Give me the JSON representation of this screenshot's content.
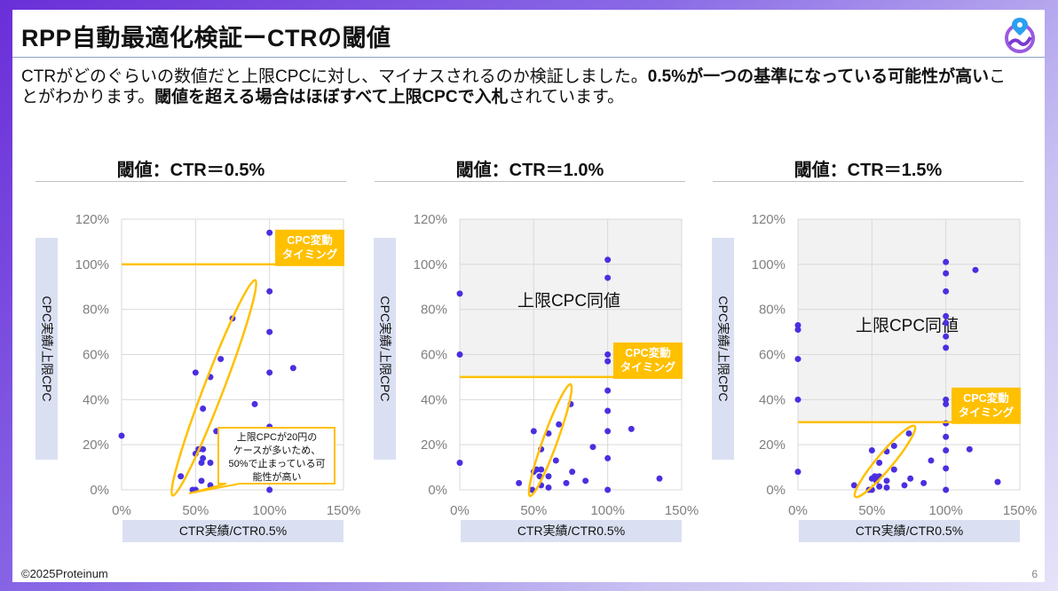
{
  "header": {
    "title": "RPP自動最適化検証ーCTRの閾値"
  },
  "description": [
    {
      "text": "CTRがどのぐらいの数値だと上限CPCに対し、マイナスされるのか検証しました。",
      "bold": false
    },
    {
      "text": "0.5%が一つの基準になっている可能性が高い",
      "bold": true
    },
    {
      "text": "こ",
      "bold": false
    },
    {
      "text": "とがわかります。",
      "bold": false,
      "newline": true
    },
    {
      "text": "閾値を超える場合はほぼすべて上限CPCで入札",
      "bold": true
    },
    {
      "text": "されています。",
      "bold": false
    }
  ],
  "footer": {
    "copyright": "©2025Proteinum",
    "page": "6"
  },
  "colors": {
    "point": "#4a2fe0",
    "accent": "#ffc000",
    "axis_label_bg": "#dae0f2",
    "shade": "#f2f2f2",
    "grid": "#d9d9d9"
  },
  "logo": {
    "icon": "location-pin-globe-icon"
  },
  "chart_data": [
    {
      "type": "scatter",
      "panel_title": "閾値：CTR＝0.5%",
      "xlabel": "CTR実績/CTR0.5%",
      "ylabel": "CPC実績/上限CPC",
      "xlim": [
        0,
        150
      ],
      "ylim": [
        0,
        120
      ],
      "xticks": [
        "0%",
        "50%",
        "100%",
        "150%"
      ],
      "yticks": [
        "0%",
        "20%",
        "40%",
        "60%",
        "80%",
        "100%",
        "120%"
      ],
      "grid": true,
      "threshold": 100,
      "threshold_label": "CPC変動\nタイミング",
      "shaded_above_threshold": false,
      "region_label": "",
      "callout": "上限CPCが20円の\nケースが多いため、\n50%で止まっている可\n能性が高い",
      "points": [
        [
          100,
          114
        ],
        [
          100,
          88
        ],
        [
          75,
          76
        ],
        [
          100,
          70
        ],
        [
          67,
          58
        ],
        [
          116,
          54
        ],
        [
          50,
          52
        ],
        [
          100,
          52
        ],
        [
          60,
          50
        ],
        [
          90,
          38
        ],
        [
          55,
          36
        ],
        [
          100,
          28
        ],
        [
          0,
          24
        ],
        [
          64,
          26
        ],
        [
          52,
          18
        ],
        [
          55,
          18
        ],
        [
          50,
          16
        ],
        [
          55,
          14
        ],
        [
          54,
          12
        ],
        [
          60,
          12
        ],
        [
          40,
          6
        ],
        [
          54,
          4
        ],
        [
          60,
          2
        ],
        [
          48,
          0
        ],
        [
          50,
          0
        ],
        [
          100,
          0
        ]
      ]
    },
    {
      "type": "scatter",
      "panel_title": "閾値：CTR＝1.0%",
      "xlabel": "CTR実績/CTR0.5%",
      "ylabel": "CPC実績/上限CPC",
      "xlim": [
        0,
        150
      ],
      "ylim": [
        0,
        120
      ],
      "xticks": [
        "0%",
        "50%",
        "100%",
        "150%"
      ],
      "yticks": [
        "0%",
        "20%",
        "40%",
        "60%",
        "80%",
        "100%",
        "120%"
      ],
      "grid": true,
      "threshold": 50,
      "threshold_label": "CPC変動\nタイミング",
      "shaded_above_threshold": true,
      "region_label": "上限CPC同値",
      "points": [
        [
          100,
          102
        ],
        [
          100,
          94
        ],
        [
          0,
          87
        ],
        [
          0,
          60
        ],
        [
          100,
          60
        ],
        [
          100,
          57
        ],
        [
          100,
          44
        ],
        [
          75,
          38
        ],
        [
          100,
          35
        ],
        [
          67,
          29
        ],
        [
          50,
          26
        ],
        [
          60,
          25
        ],
        [
          100,
          26
        ],
        [
          116,
          27
        ],
        [
          55,
          18
        ],
        [
          90,
          19
        ],
        [
          0,
          12
        ],
        [
          100,
          14
        ],
        [
          65,
          13
        ],
        [
          52,
          9
        ],
        [
          55,
          9
        ],
        [
          50,
          8
        ],
        [
          76,
          8
        ],
        [
          54,
          6
        ],
        [
          60,
          6
        ],
        [
          135,
          5
        ],
        [
          40,
          3
        ],
        [
          72,
          3
        ],
        [
          85,
          4
        ],
        [
          55,
          2
        ],
        [
          60,
          1
        ],
        [
          49,
          0
        ],
        [
          100,
          0
        ]
      ]
    },
    {
      "type": "scatter",
      "panel_title": "閾値：CTR＝1.5%",
      "xlabel": "CTR実績/CTR0.5%",
      "ylabel": "CPC実績/上限CPC",
      "xlim": [
        0,
        150
      ],
      "ylim": [
        0,
        120
      ],
      "xticks": [
        "0%",
        "50%",
        "100%",
        "150%"
      ],
      "yticks": [
        "0%",
        "20%",
        "40%",
        "60%",
        "80%",
        "100%",
        "120%"
      ],
      "grid": true,
      "threshold": 30,
      "threshold_label": "CPC変動\nタイミング",
      "shaded_above_threshold": true,
      "region_label": "上限CPC同値",
      "points": [
        [
          100,
          101
        ],
        [
          100,
          96
        ],
        [
          120,
          97.5
        ],
        [
          100,
          88
        ],
        [
          100,
          77
        ],
        [
          100,
          74
        ],
        [
          0,
          73
        ],
        [
          0,
          71
        ],
        [
          100,
          68
        ],
        [
          100,
          63
        ],
        [
          0,
          58
        ],
        [
          0,
          40
        ],
        [
          100,
          40
        ],
        [
          100,
          38
        ],
        [
          100,
          29.5
        ],
        [
          75,
          25
        ],
        [
          100,
          23.5
        ],
        [
          50,
          17.5
        ],
        [
          60,
          17
        ],
        [
          65,
          19.5
        ],
        [
          100,
          17.5
        ],
        [
          116,
          18
        ],
        [
          55,
          12
        ],
        [
          90,
          13
        ],
        [
          0,
          8
        ],
        [
          100,
          9.5
        ],
        [
          65,
          9
        ],
        [
          50,
          5
        ],
        [
          52,
          6
        ],
        [
          55,
          6
        ],
        [
          53,
          4
        ],
        [
          60,
          4
        ],
        [
          76,
          5
        ],
        [
          38,
          2
        ],
        [
          55,
          1.5
        ],
        [
          60,
          1
        ],
        [
          72,
          2
        ],
        [
          85,
          3
        ],
        [
          135,
          3.5
        ],
        [
          48,
          0
        ],
        [
          50,
          0
        ],
        [
          100,
          0
        ]
      ]
    }
  ]
}
